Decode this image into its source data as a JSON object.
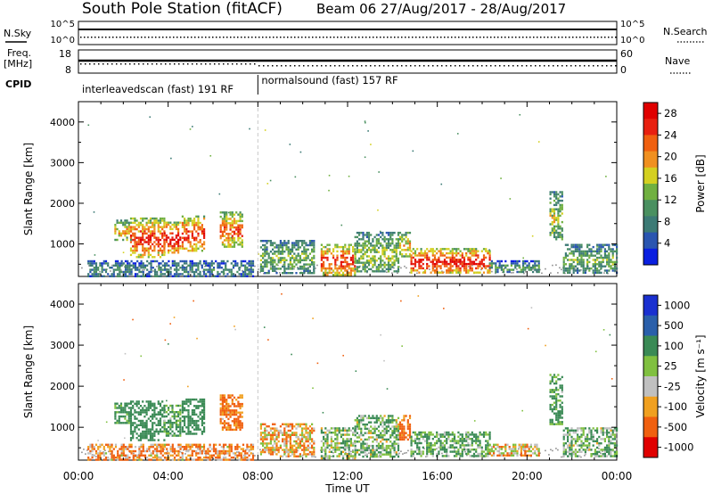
{
  "header": {
    "title": "South Pole Station (fitACF)",
    "subtitle": "Beam 06 27/Aug/2017 - 28/Aug/2017"
  },
  "aux": {
    "nsky_label": "N.Sky",
    "nsky_ticks": [
      "10^5",
      "10^0"
    ],
    "nsearch_label": "N.Search",
    "nsearch_ticks": [
      "10^5",
      "10^0"
    ],
    "freq_label_1": "Freq.",
    "freq_label_2": "[MHz]",
    "freq_ticks": [
      "18",
      "8"
    ],
    "nave_label": "Nave",
    "nave_ticks": [
      "60",
      "0"
    ],
    "cpid_label": "CPID",
    "modes": [
      {
        "name": "interleavedscan (fast) 191 RF",
        "start_hour": 0,
        "end_hour": 8
      },
      {
        "name": "normalsound (fast) 157 RF",
        "start_hour": 8,
        "end_hour": 24
      }
    ]
  },
  "chart_data": [
    {
      "type": "heatmap",
      "name": "power-panel",
      "xlabel": "Time UT",
      "ylabel": "Slant Range [km]",
      "xlim": [
        0,
        24
      ],
      "ylim": [
        200,
        4500
      ],
      "x_ticks": [
        "00:00",
        "04:00",
        "08:00",
        "12:00",
        "16:00",
        "20:00",
        "00:00"
      ],
      "y_ticks": [
        1000,
        2000,
        3000,
        4000
      ],
      "colorbar": {
        "label": "Power [dB]",
        "ticks": [
          "28",
          "24",
          "20",
          "16",
          "12",
          "8",
          "4"
        ],
        "range": [
          0,
          30
        ]
      },
      "patches": [
        {
          "t0": 0.4,
          "t1": 7.8,
          "r0": 200,
          "r1": 600,
          "v": 8
        },
        {
          "t0": 1.6,
          "t1": 2.3,
          "r0": 1100,
          "r1": 1600,
          "v": 18
        },
        {
          "t0": 2.3,
          "t1": 3.8,
          "r0": 700,
          "r1": 1650,
          "v": 24
        },
        {
          "t0": 3.8,
          "t1": 4.5,
          "r0": 800,
          "r1": 1550,
          "v": 26
        },
        {
          "t0": 4.6,
          "t1": 5.6,
          "r0": 850,
          "r1": 1700,
          "v": 24
        },
        {
          "t0": 6.3,
          "t1": 7.3,
          "r0": 950,
          "r1": 1800,
          "v": 22
        },
        {
          "t0": 8.1,
          "t1": 10.5,
          "r0": 300,
          "r1": 1100,
          "v": 12
        },
        {
          "t0": 10.8,
          "t1": 12.3,
          "r0": 250,
          "r1": 1000,
          "v": 24
        },
        {
          "t0": 12.3,
          "t1": 14.3,
          "r0": 300,
          "r1": 1300,
          "v": 14
        },
        {
          "t0": 14.3,
          "t1": 14.8,
          "r0": 700,
          "r1": 1300,
          "v": 18
        },
        {
          "t0": 14.8,
          "t1": 18.3,
          "r0": 300,
          "r1": 900,
          "v": 26
        },
        {
          "t0": 18.3,
          "t1": 20.5,
          "r0": 300,
          "r1": 600,
          "v": 10
        },
        {
          "t0": 21.0,
          "t1": 21.6,
          "r0": 1100,
          "r1": 2300,
          "v": 14
        },
        {
          "t0": 21.6,
          "t1": 24.0,
          "r0": 300,
          "r1": 1000,
          "v": 12
        }
      ]
    },
    {
      "type": "heatmap",
      "name": "velocity-panel",
      "xlabel": "Time UT",
      "ylabel": "Slant Range [km]",
      "xlim": [
        0,
        24
      ],
      "ylim": [
        200,
        4500
      ],
      "x_ticks": [
        "00:00",
        "04:00",
        "08:00",
        "12:00",
        "16:00",
        "20:00",
        "00:00"
      ],
      "y_ticks": [
        1000,
        2000,
        3000,
        4000
      ],
      "colorbar": {
        "label": "Velocity [m s⁻¹]",
        "ticks": [
          "1000",
          "500",
          "100",
          "25",
          "-25",
          "-100",
          "-500",
          "-1000"
        ],
        "range": [
          -1000,
          1000
        ]
      },
      "patches": [
        {
          "t0": 0.4,
          "t1": 7.8,
          "r0": 200,
          "r1": 600,
          "v": -100
        },
        {
          "t0": 1.6,
          "t1": 2.3,
          "r0": 1100,
          "r1": 1600,
          "v": 200
        },
        {
          "t0": 2.3,
          "t1": 3.8,
          "r0": 700,
          "r1": 1650,
          "v": 300
        },
        {
          "t0": 3.8,
          "t1": 4.5,
          "r0": 800,
          "r1": 1550,
          "v": 150
        },
        {
          "t0": 4.6,
          "t1": 5.6,
          "r0": 850,
          "r1": 1700,
          "v": 250
        },
        {
          "t0": 6.3,
          "t1": 7.3,
          "r0": 950,
          "r1": 1800,
          "v": -150
        },
        {
          "t0": 8.1,
          "t1": 10.5,
          "r0": 300,
          "r1": 1100,
          "v": -60
        },
        {
          "t0": 10.8,
          "t1": 12.3,
          "r0": 250,
          "r1": 1000,
          "v": 80
        },
        {
          "t0": 12.3,
          "t1": 14.3,
          "r0": 300,
          "r1": 1300,
          "v": 90
        },
        {
          "t0": 14.3,
          "t1": 14.8,
          "r0": 700,
          "r1": 1300,
          "v": -200
        },
        {
          "t0": 14.8,
          "t1": 18.3,
          "r0": 300,
          "r1": 900,
          "v": 120
        },
        {
          "t0": 18.3,
          "t1": 20.5,
          "r0": 300,
          "r1": 600,
          "v": -30
        },
        {
          "t0": 21.0,
          "t1": 21.6,
          "r0": 1100,
          "r1": 2300,
          "v": 150
        },
        {
          "t0": 21.6,
          "t1": 24.0,
          "r0": 300,
          "r1": 1000,
          "v": 100
        }
      ]
    }
  ],
  "colors": {
    "grid_dash": "#c8c8c8",
    "ground_scatter": "#9a9a9a"
  }
}
